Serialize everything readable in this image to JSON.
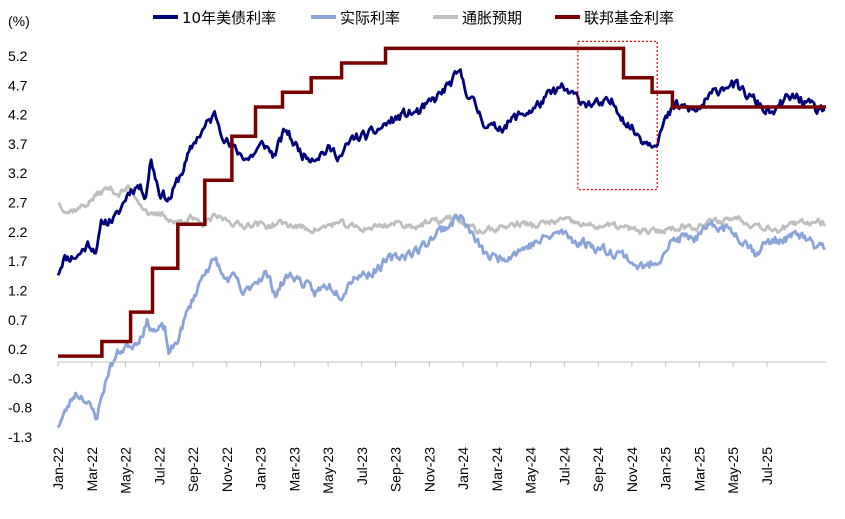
{
  "chart_data": {
    "type": "line",
    "unit_label": "(%)",
    "y_ticks": [
      "5.2",
      "4.7",
      "4.2",
      "3.7",
      "3.2",
      "2.7",
      "2.2",
      "1.7",
      "1.2",
      "0.7",
      "0.2",
      "-0.3",
      "-0.8",
      "-1.3"
    ],
    "negative_color": "#e00000",
    "ylim": [
      -1.3,
      5.2
    ],
    "x_ticks": [
      "Jan-22",
      "Mar-22",
      "May-22",
      "Jul-22",
      "Sep-22",
      "Nov-22",
      "Jan-23",
      "Mar-23",
      "May-23",
      "Jul-23",
      "Sep-23",
      "Nov-23",
      "Jan-24",
      "Mar-24",
      "May-24",
      "Jul-24",
      "Sep-24",
      "Nov-24",
      "Jan-25",
      "Mar-25",
      "May-25",
      "Jul-25"
    ],
    "x_range_months": [
      0,
      45.5
    ],
    "series": [
      {
        "name": "10年美债利率",
        "color": "#00007a",
        "keypoints": [
          [
            0,
            1.5
          ],
          [
            0.3,
            1.75
          ],
          [
            1.2,
            1.8
          ],
          [
            1.8,
            2.0
          ],
          [
            2.3,
            1.9
          ],
          [
            2.6,
            2.35
          ],
          [
            3.5,
            2.45
          ],
          [
            4.2,
            2.9
          ],
          [
            4.7,
            3.0
          ],
          [
            5.2,
            2.85
          ],
          [
            5.5,
            3.45
          ],
          [
            6.0,
            2.9
          ],
          [
            6.6,
            2.75
          ],
          [
            7.3,
            3.2
          ],
          [
            8.2,
            3.8
          ],
          [
            9.3,
            4.2
          ],
          [
            9.6,
            4.0
          ],
          [
            10.2,
            3.65
          ],
          [
            10.7,
            3.55
          ],
          [
            11.3,
            3.45
          ],
          [
            12.2,
            3.7
          ],
          [
            12.8,
            3.5
          ],
          [
            13.5,
            3.95
          ],
          [
            14.0,
            3.7
          ],
          [
            14.6,
            3.5
          ],
          [
            15.2,
            3.5
          ],
          [
            16.0,
            3.6
          ],
          [
            16.8,
            3.5
          ],
          [
            17.5,
            3.8
          ],
          [
            18.5,
            3.85
          ],
          [
            19.5,
            4.05
          ],
          [
            20.5,
            4.2
          ],
          [
            21.5,
            4.25
          ],
          [
            22.5,
            4.5
          ],
          [
            23.3,
            4.75
          ],
          [
            23.8,
            4.9
          ],
          [
            24.4,
            4.5
          ],
          [
            25.2,
            4.1
          ],
          [
            25.8,
            3.95
          ],
          [
            26.6,
            4.05
          ],
          [
            27.4,
            4.2
          ],
          [
            28.2,
            4.3
          ],
          [
            29.0,
            4.5
          ],
          [
            29.8,
            4.65
          ],
          [
            30.6,
            4.5
          ],
          [
            31.4,
            4.4
          ],
          [
            32.2,
            4.35
          ],
          [
            32.8,
            4.4
          ],
          [
            33.2,
            4.3
          ],
          [
            33.6,
            4.1
          ],
          [
            34.2,
            3.9
          ],
          [
            34.8,
            3.75
          ],
          [
            35.4,
            3.75
          ],
          [
            36.0,
            4.1
          ],
          [
            36.6,
            4.35
          ],
          [
            37.3,
            4.3
          ],
          [
            37.8,
            4.25
          ],
          [
            38.3,
            4.4
          ],
          [
            39.2,
            4.65
          ],
          [
            39.8,
            4.75
          ],
          [
            40.5,
            4.6
          ],
          [
            41.2,
            4.45
          ],
          [
            41.8,
            4.3
          ],
          [
            42.5,
            4.2
          ],
          [
            43.0,
            4.45
          ],
          [
            43.8,
            4.5
          ],
          [
            44.5,
            4.35
          ],
          [
            45.0,
            4.25
          ],
          [
            45.5,
            4.3
          ]
        ]
      },
      {
        "name": "实际利率",
        "color": "#8aa4d8",
        "keypoints": [
          [
            0,
            -1.1
          ],
          [
            0.4,
            -0.9
          ],
          [
            1.0,
            -0.55
          ],
          [
            1.5,
            -0.6
          ],
          [
            2.0,
            -0.85
          ],
          [
            2.3,
            -0.95
          ],
          [
            2.6,
            -0.6
          ],
          [
            3.0,
            -0.15
          ],
          [
            3.6,
            0.15
          ],
          [
            4.0,
            0.25
          ],
          [
            4.5,
            0.3
          ],
          [
            4.8,
            0.4
          ],
          [
            5.3,
            0.65
          ],
          [
            5.8,
            0.5
          ],
          [
            6.3,
            0.55
          ],
          [
            6.6,
            0.1
          ],
          [
            7.0,
            0.3
          ],
          [
            7.5,
            0.7
          ],
          [
            8.2,
            1.2
          ],
          [
            8.8,
            1.6
          ],
          [
            9.4,
            1.7
          ],
          [
            9.8,
            1.4
          ],
          [
            10.5,
            1.4
          ],
          [
            11.0,
            1.1
          ],
          [
            11.6,
            1.35
          ],
          [
            12.3,
            1.5
          ],
          [
            12.9,
            1.15
          ],
          [
            13.6,
            1.45
          ],
          [
            14.0,
            1.45
          ],
          [
            14.6,
            1.3
          ],
          [
            15.2,
            1.15
          ],
          [
            16.0,
            1.3
          ],
          [
            16.8,
            1.15
          ],
          [
            17.5,
            1.45
          ],
          [
            18.5,
            1.5
          ],
          [
            19.5,
            1.7
          ],
          [
            20.4,
            1.8
          ],
          [
            21.4,
            1.9
          ],
          [
            22.5,
            2.2
          ],
          [
            23.3,
            2.35
          ],
          [
            23.8,
            2.5
          ],
          [
            24.4,
            2.2
          ],
          [
            25.2,
            1.85
          ],
          [
            25.8,
            1.75
          ],
          [
            26.6,
            1.8
          ],
          [
            27.4,
            1.9
          ],
          [
            28.2,
            2.0
          ],
          [
            29.0,
            2.1
          ],
          [
            29.8,
            2.2
          ],
          [
            30.6,
            2.05
          ],
          [
            31.4,
            2.0
          ],
          [
            32.2,
            1.9
          ],
          [
            33.2,
            1.85
          ],
          [
            33.8,
            1.75
          ],
          [
            34.4,
            1.6
          ],
          [
            35.0,
            1.6
          ],
          [
            35.6,
            1.75
          ],
          [
            36.2,
            2.0
          ],
          [
            37.0,
            2.1
          ],
          [
            37.8,
            2.1
          ],
          [
            38.6,
            2.25
          ],
          [
            39.3,
            2.3
          ],
          [
            40.0,
            2.2
          ],
          [
            40.7,
            2.05
          ],
          [
            41.3,
            1.85
          ],
          [
            41.9,
            2.0
          ],
          [
            42.5,
            2.05
          ],
          [
            43.3,
            2.1
          ],
          [
            44.0,
            2.15
          ],
          [
            44.8,
            1.95
          ],
          [
            45.5,
            1.95
          ]
        ]
      },
      {
        "name": "通胀预期",
        "color": "#bfbfbf",
        "keypoints": [
          [
            0,
            2.7
          ],
          [
            0.6,
            2.55
          ],
          [
            1.2,
            2.6
          ],
          [
            1.8,
            2.7
          ],
          [
            2.4,
            2.85
          ],
          [
            3.0,
            2.95
          ],
          [
            3.6,
            2.85
          ],
          [
            4.2,
            2.95
          ],
          [
            4.6,
            2.8
          ],
          [
            5.0,
            2.65
          ],
          [
            5.6,
            2.45
          ],
          [
            6.2,
            2.5
          ],
          [
            7.0,
            2.35
          ],
          [
            7.8,
            2.45
          ],
          [
            8.5,
            2.3
          ],
          [
            9.3,
            2.45
          ],
          [
            10.1,
            2.4
          ],
          [
            10.8,
            2.3
          ],
          [
            11.6,
            2.35
          ],
          [
            12.4,
            2.3
          ],
          [
            13.2,
            2.35
          ],
          [
            14.0,
            2.3
          ],
          [
            14.8,
            2.25
          ],
          [
            15.6,
            2.25
          ],
          [
            16.4,
            2.35
          ],
          [
            17.2,
            2.3
          ],
          [
            18.0,
            2.25
          ],
          [
            19.0,
            2.3
          ],
          [
            20.0,
            2.35
          ],
          [
            21.0,
            2.3
          ],
          [
            22.0,
            2.35
          ],
          [
            22.8,
            2.4
          ],
          [
            23.6,
            2.45
          ],
          [
            24.2,
            2.3
          ],
          [
            25.0,
            2.2
          ],
          [
            25.8,
            2.25
          ],
          [
            26.6,
            2.3
          ],
          [
            27.4,
            2.35
          ],
          [
            28.2,
            2.3
          ],
          [
            29.0,
            2.35
          ],
          [
            29.8,
            2.4
          ],
          [
            30.6,
            2.35
          ],
          [
            31.4,
            2.3
          ],
          [
            32.2,
            2.3
          ],
          [
            33.0,
            2.3
          ],
          [
            33.8,
            2.25
          ],
          [
            34.6,
            2.2
          ],
          [
            35.4,
            2.2
          ],
          [
            36.2,
            2.25
          ],
          [
            37.0,
            2.3
          ],
          [
            37.8,
            2.3
          ],
          [
            38.6,
            2.35
          ],
          [
            39.4,
            2.4
          ],
          [
            40.2,
            2.45
          ],
          [
            41.0,
            2.35
          ],
          [
            41.8,
            2.3
          ],
          [
            42.6,
            2.25
          ],
          [
            43.4,
            2.3
          ],
          [
            44.2,
            2.35
          ],
          [
            45.0,
            2.4
          ],
          [
            45.5,
            2.35
          ]
        ]
      },
      {
        "name": "联邦基金利率",
        "color": "#7a0000",
        "steps": [
          [
            0,
            0.08
          ],
          [
            2.6,
            0.33
          ],
          [
            4.3,
            0.83
          ],
          [
            5.6,
            1.58
          ],
          [
            7.1,
            2.33
          ],
          [
            8.7,
            3.08
          ],
          [
            10.3,
            3.83
          ],
          [
            11.7,
            4.33
          ],
          [
            13.3,
            4.58
          ],
          [
            15.0,
            4.83
          ],
          [
            16.8,
            5.08
          ],
          [
            19.4,
            5.33
          ],
          [
            33.5,
            4.83
          ],
          [
            35.2,
            4.58
          ],
          [
            36.4,
            4.33
          ]
        ],
        "end_x": 45.5
      }
    ],
    "highlight_box": {
      "x0": 30.8,
      "x1": 35.5,
      "y0": 2.92,
      "y1": 5.45,
      "color": "#e00000"
    }
  }
}
